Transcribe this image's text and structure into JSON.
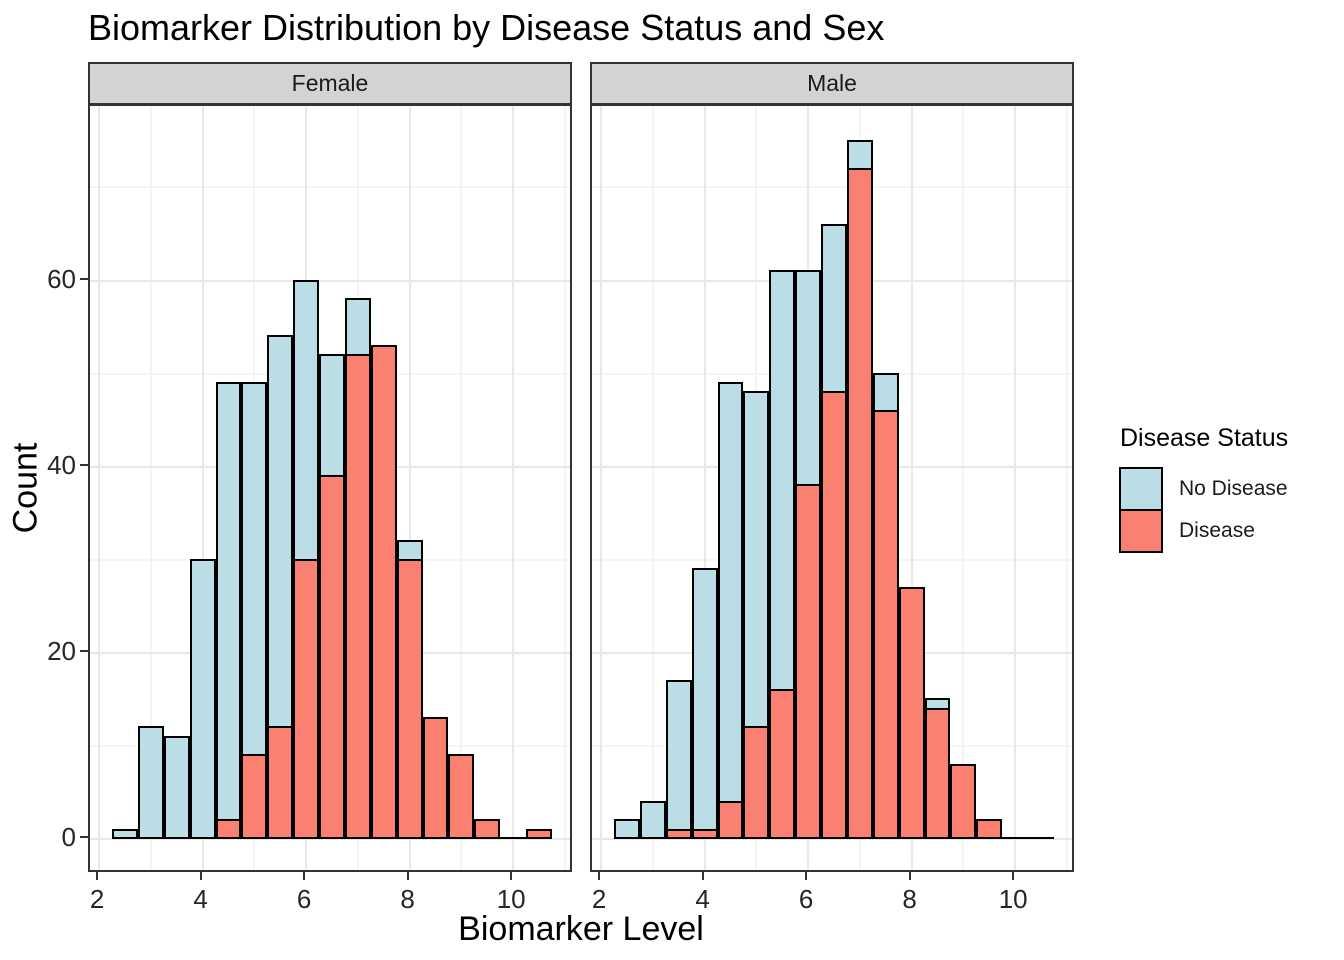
{
  "title": "Biomarker Distribution by Disease Status and Sex",
  "axes": {
    "x": {
      "label": "Biomarker Level",
      "tick_labels": [
        "2",
        "4",
        "6",
        "8",
        "10"
      ],
      "tick_values": [
        2,
        4,
        6,
        8,
        10
      ],
      "minor_ticks": [
        3,
        5,
        7,
        9,
        11
      ],
      "domain": [
        1.825,
        11.175
      ]
    },
    "y": {
      "label": "Count",
      "tick_labels": [
        "0",
        "20",
        "40",
        "60"
      ],
      "tick_values": [
        0,
        20,
        40,
        60
      ],
      "minor_ticks": [
        10,
        30,
        50,
        70
      ],
      "domain": [
        -3.75,
        78.75
      ]
    }
  },
  "legend": {
    "title": "Disease Status",
    "items": [
      {
        "label": "No Disease",
        "color": "#BADDE6"
      },
      {
        "label": "Disease",
        "color": "#FA8072"
      }
    ]
  },
  "theme": {
    "strip_bg": "#D3D3D3",
    "panel_border": "#333333",
    "grid_major": "#E8E8E8",
    "grid_minor": "#F4F4F4",
    "bar_outline": "#000000",
    "tick_color": "#333333",
    "baseline_color": "#000000"
  },
  "chart_data": {
    "type": "bar",
    "subtype": "faceted-histogram-overlaid",
    "title": "Biomarker Distribution by Disease Status and Sex",
    "xlabel": "Biomarker Level",
    "ylabel": "Count",
    "xlim": [
      1.825,
      11.175
    ],
    "ylim": [
      -3.75,
      78.75
    ],
    "grid": true,
    "legend_position": "right",
    "binwidth": 0.5,
    "bar_range": [
      2.25,
      10.75
    ],
    "bin_centers": [
      2.5,
      3,
      3.5,
      4,
      4.5,
      5,
      5.5,
      6,
      6.5,
      7,
      7.5,
      8,
      8.5,
      9,
      9.5,
      10,
      10.5
    ],
    "facets": [
      {
        "name": "Female",
        "series": [
          {
            "name": "No Disease",
            "color": "#BADDE6",
            "values": [
              1,
              12,
              11,
              30,
              49,
              49,
              54,
              60,
              52,
              58,
              null,
              32,
              null,
              null,
              null,
              0,
              null
            ]
          },
          {
            "name": "Disease",
            "color": "#FA8072",
            "values": [
              0,
              0,
              0,
              0,
              2,
              9,
              12,
              30,
              39,
              52,
              53,
              30,
              13,
              9,
              2,
              0,
              1
            ]
          }
        ]
      },
      {
        "name": "Male",
        "series": [
          {
            "name": "No Disease",
            "color": "#BADDE6",
            "values": [
              2,
              4,
              17,
              29,
              49,
              48,
              61,
              61,
              66,
              75,
              50,
              null,
              15,
              null,
              null,
              0,
              0
            ]
          },
          {
            "name": "Disease",
            "color": "#FA8072",
            "values": [
              0,
              0,
              1,
              1,
              4,
              12,
              16,
              38,
              48,
              72,
              46,
              27,
              14,
              8,
              2,
              0,
              0
            ]
          }
        ]
      }
    ]
  }
}
